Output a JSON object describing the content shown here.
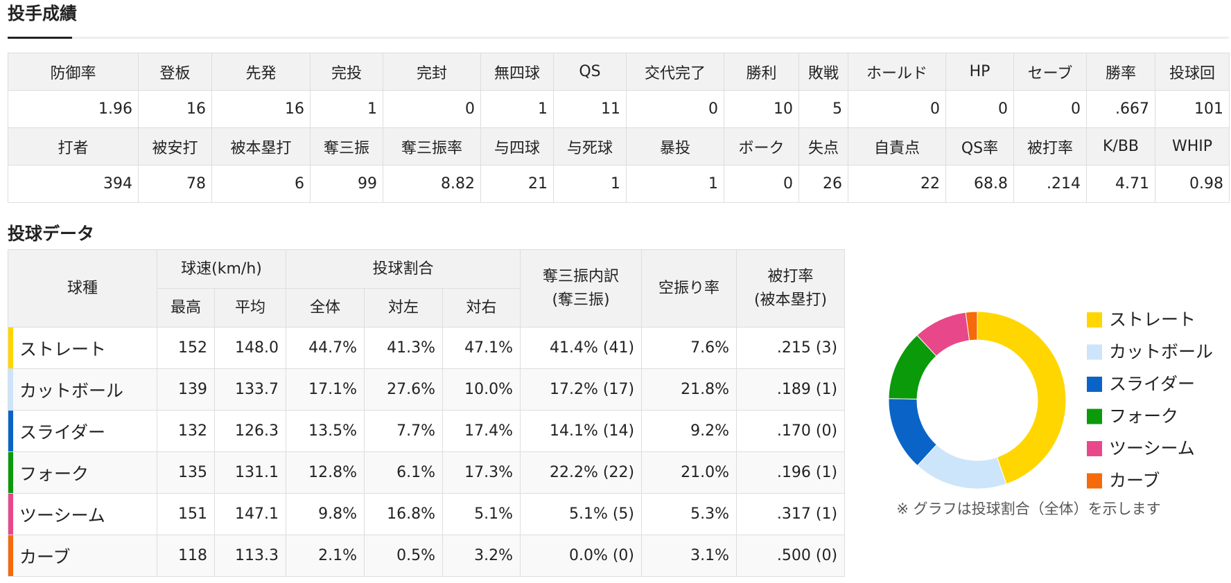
{
  "pitching_stats": {
    "title": "投手成績",
    "rows": [
      [
        "防御率",
        "登板",
        "先発",
        "完投",
        "完封",
        "無四球",
        "QS",
        "交代完了",
        "勝利",
        "敗戦",
        "ホールド",
        "HP",
        "セーブ",
        "勝率",
        "投球回"
      ],
      [
        "1.96",
        "16",
        "16",
        "1",
        "0",
        "1",
        "11",
        "0",
        "10",
        "5",
        "0",
        "0",
        "0",
        ".667",
        "101"
      ],
      [
        "打者",
        "被安打",
        "被本塁打",
        "奪三振",
        "奪三振率",
        "与四球",
        "与死球",
        "暴投",
        "ボーク",
        "失点",
        "自責点",
        "QS率",
        "被打率",
        "K/BB",
        "WHIP"
      ],
      [
        "394",
        "78",
        "6",
        "99",
        "8.82",
        "21",
        "1",
        "1",
        "0",
        "26",
        "22",
        "68.8",
        ".214",
        "4.71",
        "0.98"
      ]
    ]
  },
  "pitch_data": {
    "title": "投球データ",
    "header": {
      "pitch": "球種",
      "speed": "球速(km/h)",
      "speed_cols": [
        "最高",
        "平均"
      ],
      "ratio": "投球割合",
      "ratio_cols": [
        "全体",
        "対左",
        "対右"
      ],
      "strikeouts": [
        "奪三振内訳",
        "(奪三振)"
      ],
      "whiff": "空振り率",
      "avg": [
        "被打率",
        "(被本塁打)"
      ]
    },
    "rows": [
      [
        "ストレート",
        "152",
        "148.0",
        "44.7%",
        "41.3%",
        "47.1%",
        "41.4% (41)",
        "7.6%",
        ".215 (3)"
      ],
      [
        "カットボール",
        "139",
        "133.7",
        "17.1%",
        "27.6%",
        "10.0%",
        "17.2% (17)",
        "21.8%",
        ".189 (1)"
      ],
      [
        "スライダー",
        "132",
        "126.3",
        "13.5%",
        "7.7%",
        "17.4%",
        "14.1% (14)",
        "9.2%",
        ".170 (0)"
      ],
      [
        "フォーク",
        "135",
        "131.1",
        "12.8%",
        "6.1%",
        "17.3%",
        "22.2% (22)",
        "21.0%",
        ".196 (1)"
      ],
      [
        "ツーシーム",
        "151",
        "147.1",
        "9.8%",
        "16.8%",
        "5.1%",
        "5.1% (5)",
        "5.3%",
        ".317 (1)"
      ],
      [
        "カーブ",
        "118",
        "113.3",
        "2.1%",
        "0.5%",
        "3.2%",
        "0.0% (0)",
        "3.1%",
        ".500 (0)"
      ]
    ]
  },
  "chart_data": {
    "type": "pie",
    "donut": true,
    "categories": [
      "ストレート",
      "カットボール",
      "スライダー",
      "フォーク",
      "ツーシーム",
      "カーブ"
    ],
    "values": [
      44.7,
      17.1,
      13.5,
      12.8,
      9.8,
      2.1
    ],
    "colors": [
      "#ffd600",
      "#cce5fa",
      "#0a64c8",
      "#0a9a0a",
      "#e8488a",
      "#f56a0a"
    ],
    "note": "※ グラフは投球割合（全体）を示します"
  }
}
